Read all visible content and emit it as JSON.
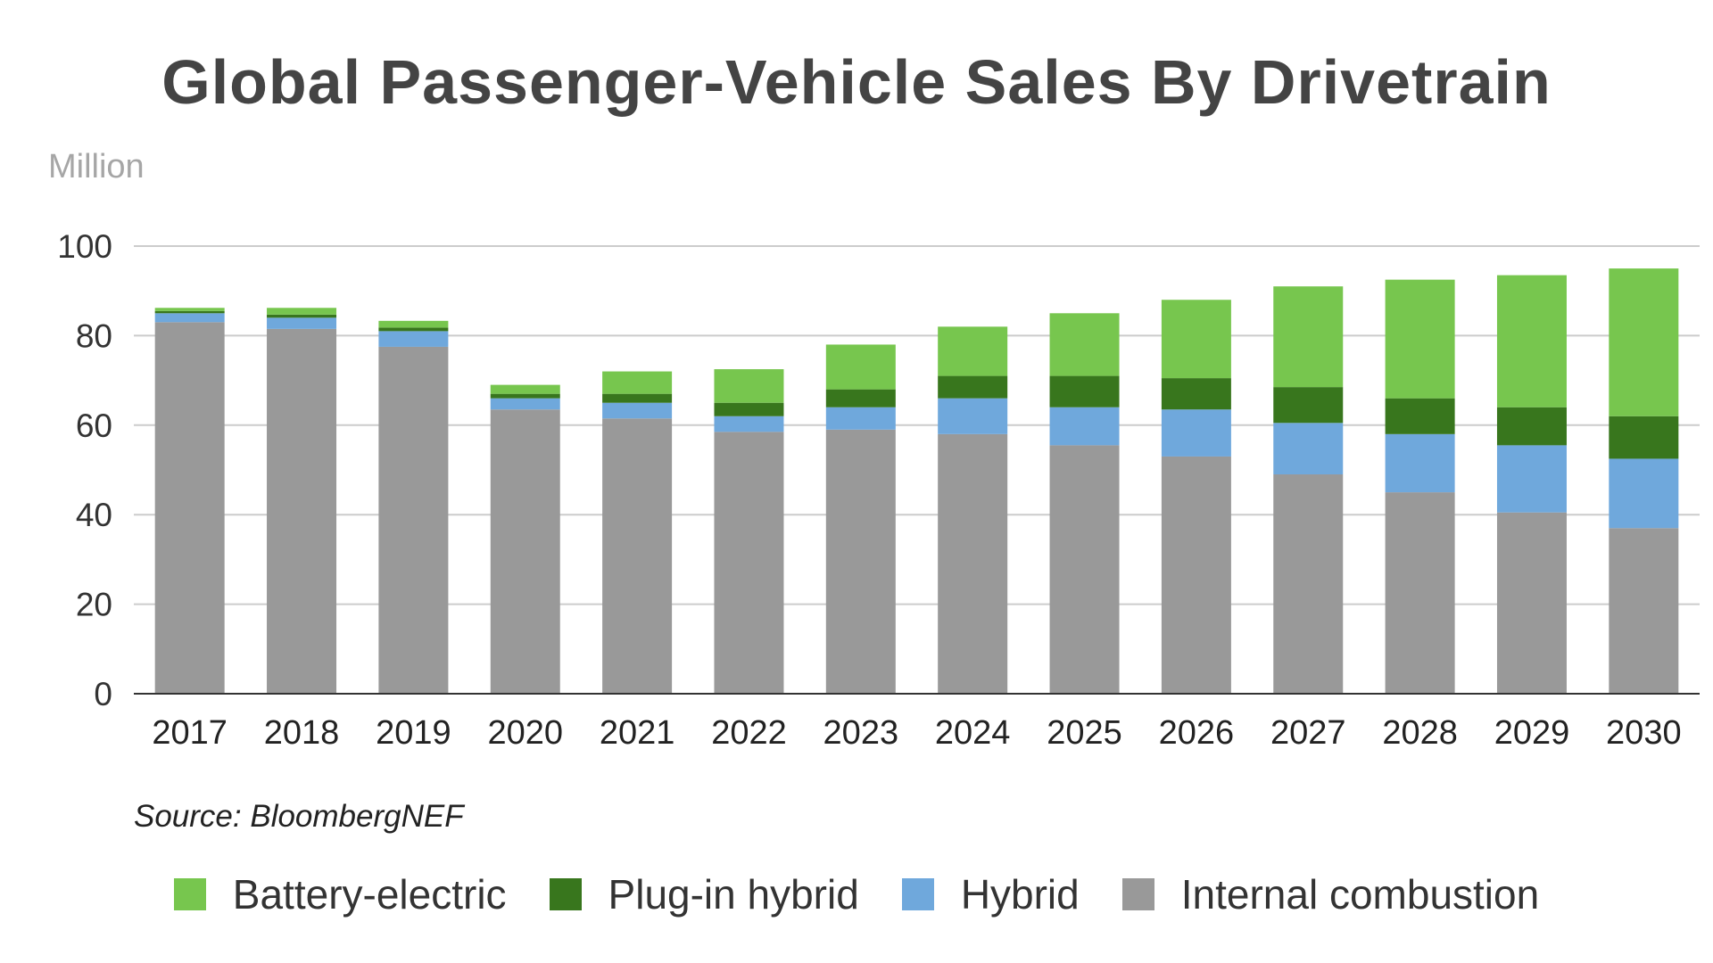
{
  "chart_data": {
    "type": "bar",
    "stacked": true,
    "title": "Global Passenger-Vehicle Sales By Drivetrain",
    "unit_label": "Million",
    "source": "Source: BloombergNEF",
    "xlabel": "",
    "ylabel": "",
    "ylim": [
      0,
      100
    ],
    "yticks": [
      0,
      20,
      40,
      60,
      80,
      100
    ],
    "grid": true,
    "legend_position": "bottom",
    "categories": [
      "2017",
      "2018",
      "2019",
      "2020",
      "2021",
      "2022",
      "2023",
      "2024",
      "2025",
      "2026",
      "2027",
      "2028",
      "2029",
      "2030"
    ],
    "series": [
      {
        "name": "Internal combustion",
        "color": "#999999",
        "values": [
          83,
          81.5,
          77.5,
          63.5,
          61.5,
          58.5,
          59,
          58,
          55.5,
          53,
          49,
          45,
          40.5,
          37
        ]
      },
      {
        "name": "Hybrid",
        "color": "#6fa8dc",
        "values": [
          2,
          2.5,
          3.5,
          2.5,
          3.5,
          3.5,
          5,
          8,
          8.5,
          10.5,
          11.5,
          13,
          15,
          15.5
        ]
      },
      {
        "name": "Plug-in hybrid",
        "color": "#38761d",
        "values": [
          0.5,
          0.7,
          0.8,
          1,
          2,
          3,
          4,
          5,
          7,
          7,
          8,
          8,
          8.5,
          9.5
        ]
      },
      {
        "name": "Battery-electric",
        "color": "#77c64e",
        "values": [
          0.7,
          1.5,
          1.5,
          2,
          5,
          7.5,
          10,
          11,
          14,
          17.5,
          22.5,
          26.5,
          29.5,
          33
        ]
      }
    ],
    "legend_order": [
      "Battery-electric",
      "Plug-in hybrid",
      "Hybrid",
      "Internal combustion"
    ]
  }
}
